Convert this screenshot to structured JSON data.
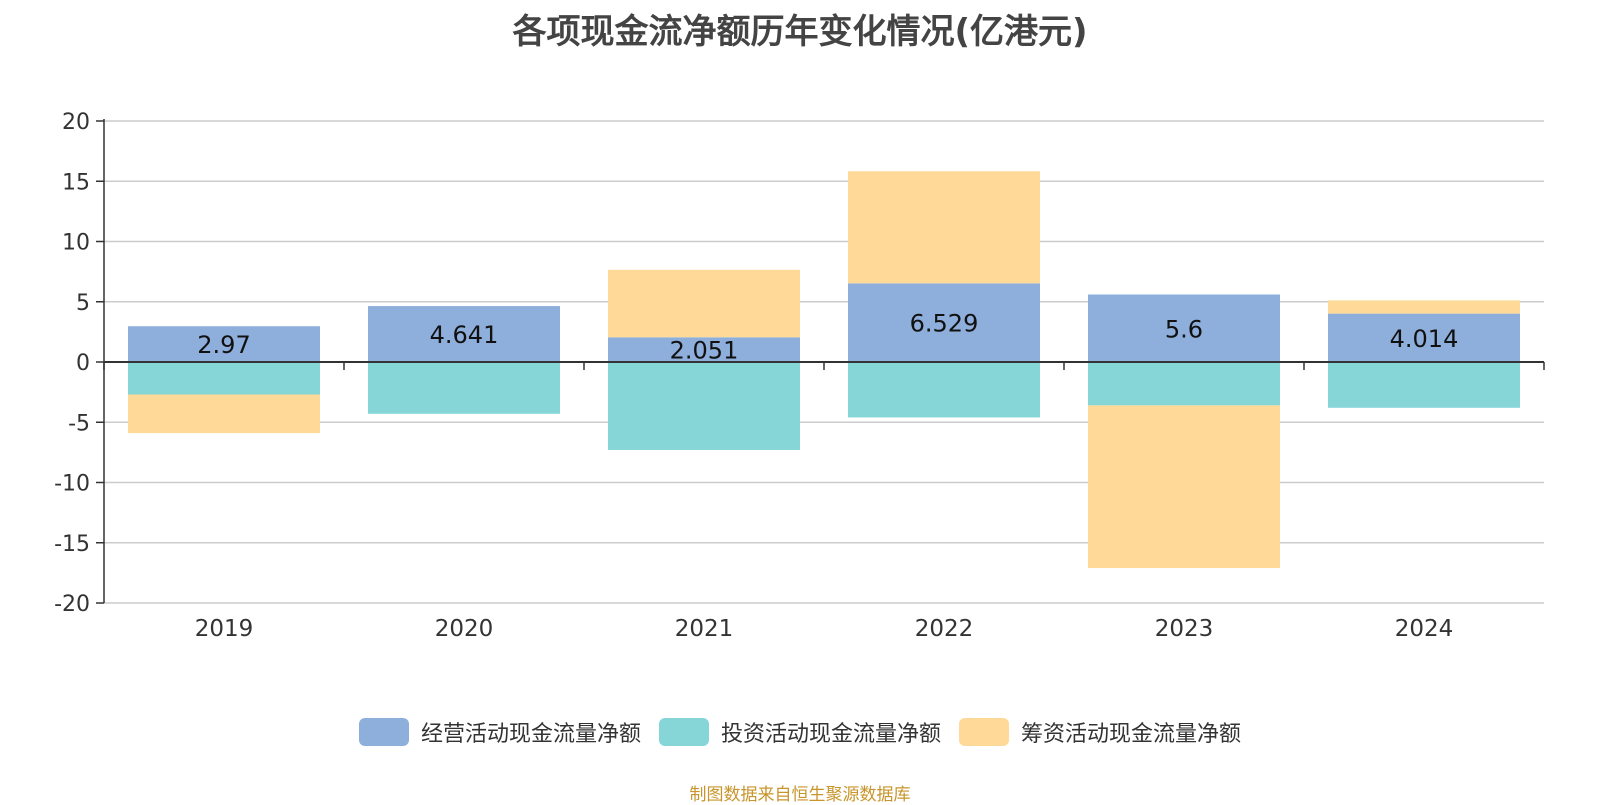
{
  "title": "各项现金流净额历年变化情况(亿港元)",
  "source": "制图数据来自恒生聚源数据库",
  "chart_data": {
    "type": "bar",
    "stacked": true,
    "categories": [
      "2019",
      "2020",
      "2021",
      "2022",
      "2023",
      "2024"
    ],
    "series": [
      {
        "name": "经营活动现金流量净额",
        "color": "#8eaedb",
        "values": [
          2.97,
          4.641,
          2.051,
          6.529,
          5.6,
          4.014
        ]
      },
      {
        "name": "投资活动现金流量净额",
        "color": "#86d6d8",
        "values": [
          -2.7,
          -4.3,
          -7.3,
          -4.6,
          -3.6,
          -3.8
        ]
      },
      {
        "name": "筹资活动现金流量净额",
        "color": "#fed998",
        "values": [
          -3.2,
          0,
          5.6,
          9.3,
          -13.5,
          1.1
        ]
      }
    ],
    "data_labels_series": "经营活动现金流量净额",
    "data_labels": [
      "2.97",
      "4.641",
      "2.051",
      "6.529",
      "5.6",
      "4.014"
    ],
    "y_ticks": [
      "20",
      "15",
      "10",
      "5",
      "0",
      "-5",
      "-10",
      "-15",
      "-20"
    ],
    "ylim": [
      -20,
      20
    ],
    "grid": true,
    "legend_position": "bottom"
  }
}
